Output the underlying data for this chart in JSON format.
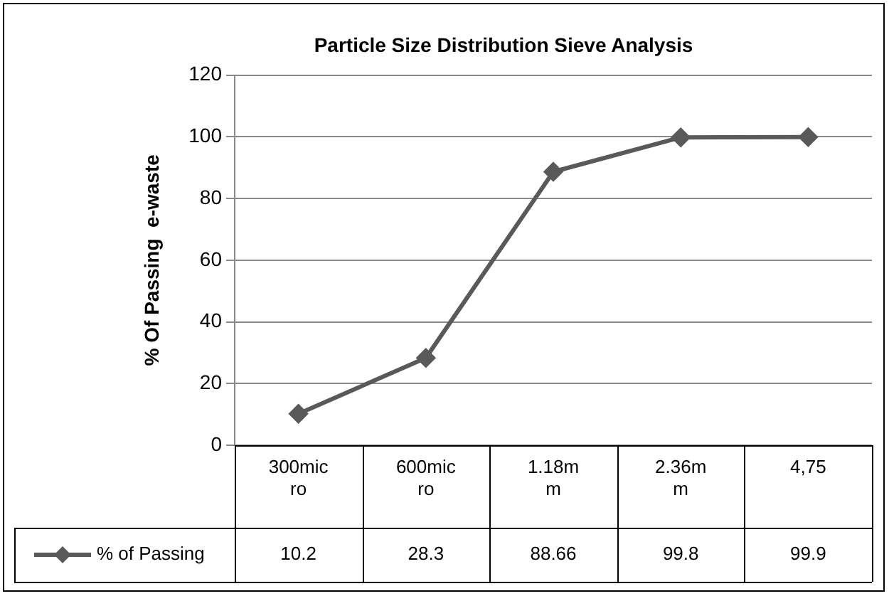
{
  "chart_data": {
    "type": "line",
    "title": "Particle Size Distribution Sieve Analysis",
    "ylabel": "% Of Passing  e-waste",
    "categories": [
      "300micro",
      "600micro",
      "1.18mm",
      "2.36mm",
      "4,75"
    ],
    "series": [
      {
        "name": "% of Passing",
        "color": "#595959",
        "values": [
          10.2,
          28.3,
          88.66,
          99.8,
          99.9
        ]
      }
    ],
    "ylim": [
      0,
      120
    ],
    "yticks": [
      0,
      20,
      40,
      60,
      80,
      100,
      120
    ],
    "grid": "y",
    "legend": "bottom",
    "marker": "diamond",
    "line_style": "solid",
    "data_labels": true
  }
}
